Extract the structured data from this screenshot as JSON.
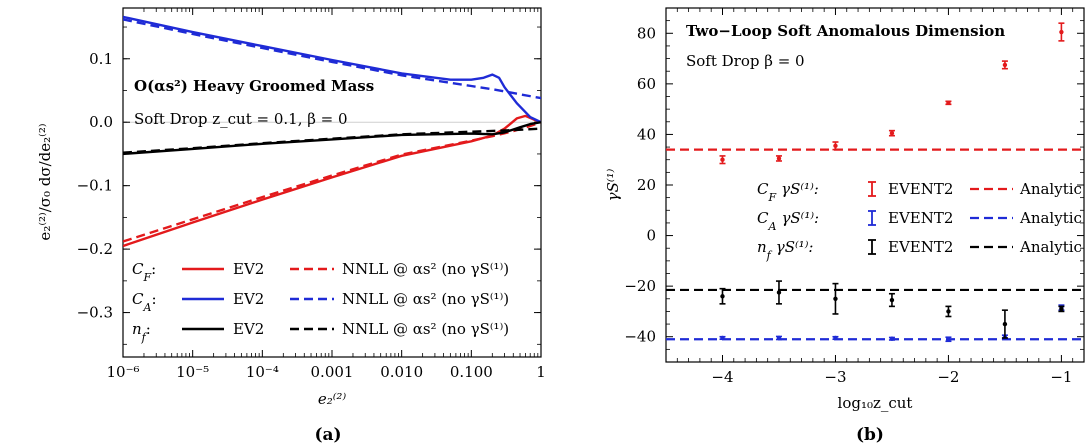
{
  "chart_data": [
    {
      "type": "line",
      "panel": "(a)",
      "title": "O(αs²) Heavy Groomed Mass",
      "subtitle": "Soft Drop z_cut = 0.1, β = 0",
      "xlabel": "e₂⁽²⁾",
      "ylabel": "e₂⁽²⁾/σ₀ dσ/de₂⁽²⁾",
      "x_scale": "log",
      "xlim": [
        1e-06,
        1
      ],
      "ylim": [
        -0.37,
        0.18
      ],
      "xticks": [
        {
          "value": 1e-06,
          "label": "10⁻⁶"
        },
        {
          "value": 1e-05,
          "label": "10⁻⁵"
        },
        {
          "value": 0.0001,
          "label": "10⁻⁴"
        },
        {
          "value": 0.001,
          "label": "0.001"
        },
        {
          "value": 0.01,
          "label": "0.010"
        },
        {
          "value": 0.1,
          "label": "0.100"
        },
        {
          "value": 1,
          "label": "1"
        }
      ],
      "yticks": [
        {
          "value": 0.1,
          "label": "0.1"
        },
        {
          "value": 0.0,
          "label": "0.0"
        },
        {
          "value": -0.1,
          "label": "−0.1"
        },
        {
          "value": -0.2,
          "label": "−0.2"
        },
        {
          "value": -0.3,
          "label": "−0.3"
        }
      ],
      "legend_placement": "bottom-left",
      "series": [
        {
          "group": "C_F",
          "kind": "EV2",
          "color": "#e31a1c",
          "dash": false,
          "x": [
            1e-06,
            1e-05,
            0.0001,
            0.001,
            0.01,
            0.1,
            0.2,
            0.3,
            0.45,
            0.6,
            0.8,
            1
          ],
          "y": [
            -0.195,
            -0.158,
            -0.122,
            -0.087,
            -0.053,
            -0.03,
            -0.021,
            -0.01,
            0.006,
            0.01,
            0.004,
            0.0
          ]
        },
        {
          "group": "C_F",
          "kind": "NNLL",
          "color": "#e31a1c",
          "dash": true,
          "x": [
            1e-06,
            1e-05,
            0.0001,
            0.001,
            0.01,
            0.1,
            0.2,
            0.4,
            0.7,
            1
          ],
          "y": [
            -0.188,
            -0.153,
            -0.118,
            -0.084,
            -0.051,
            -0.029,
            -0.022,
            -0.014,
            -0.006,
            0.0
          ]
        },
        {
          "group": "C_A",
          "kind": "EV2",
          "color": "#1f2bd6",
          "dash": false,
          "x": [
            1e-06,
            1e-05,
            0.0001,
            0.001,
            0.01,
            0.05,
            0.1,
            0.15,
            0.2,
            0.25,
            0.3,
            0.45,
            0.7,
            1
          ],
          "y": [
            0.166,
            0.142,
            0.12,
            0.098,
            0.077,
            0.067,
            0.067,
            0.07,
            0.075,
            0.07,
            0.055,
            0.03,
            0.008,
            0.0
          ]
        },
        {
          "group": "C_A",
          "kind": "NNLL",
          "color": "#1f2bd6",
          "dash": true,
          "x": [
            1e-06,
            1e-05,
            0.0001,
            0.001,
            0.01,
            0.1,
            0.2,
            0.5,
            1
          ],
          "y": [
            0.162,
            0.139,
            0.117,
            0.095,
            0.074,
            0.057,
            0.052,
            0.044,
            0.038
          ]
        },
        {
          "group": "n_f",
          "kind": "EV2",
          "color": "#000000",
          "dash": false,
          "x": [
            1e-06,
            1e-05,
            0.0001,
            0.001,
            0.01,
            0.1,
            0.2,
            0.3,
            0.5,
            0.7,
            1
          ],
          "y": [
            -0.05,
            -0.042,
            -0.034,
            -0.027,
            -0.02,
            -0.018,
            -0.019,
            -0.016,
            -0.008,
            -0.003,
            0.0
          ]
        },
        {
          "group": "n_f",
          "kind": "NNLL",
          "color": "#000000",
          "dash": true,
          "x": [
            1e-06,
            1e-05,
            0.0001,
            0.001,
            0.01,
            0.1,
            0.3,
            1
          ],
          "y": [
            -0.048,
            -0.041,
            -0.033,
            -0.026,
            -0.019,
            -0.015,
            -0.013,
            -0.01
          ]
        }
      ],
      "legend": {
        "rows": [
          {
            "group": "C_F",
            "color": "#e31a1c"
          },
          {
            "group": "C_A",
            "color": "#1f2bd6"
          },
          {
            "group": "n_f",
            "color": "#000000"
          }
        ],
        "ev2_label": "EV2",
        "nnll_label": "NNLL @ αs² (no γS⁽¹⁾)"
      }
    },
    {
      "type": "scatter",
      "panel": "(b)",
      "title": "Two−Loop Soft Anomalous Dimension",
      "subtitle": "Soft Drop β = 0",
      "xlabel": "log₁₀z_cut",
      "ylabel": "γS⁽¹⁾",
      "xlim": [
        -4.5,
        -0.8
      ],
      "ylim": [
        -50,
        90
      ],
      "xticks": [
        {
          "value": -4,
          "label": "−4"
        },
        {
          "value": -3,
          "label": "−3"
        },
        {
          "value": -2,
          "label": "−2"
        },
        {
          "value": -1,
          "label": "−1"
        }
      ],
      "yticks": [
        {
          "value": 80,
          "label": "80"
        },
        {
          "value": 60,
          "label": "60"
        },
        {
          "value": 40,
          "label": "40"
        },
        {
          "value": 20,
          "label": "20"
        },
        {
          "value": 0,
          "label": "0"
        },
        {
          "value": -20,
          "label": "−20"
        },
        {
          "value": -40,
          "label": "−40"
        }
      ],
      "legend_placement": "center-right",
      "series": [
        {
          "group": "C_F",
          "name": "EVENT2",
          "color": "#e31a1c",
          "x": [
            -4,
            -3.5,
            -3,
            -2.5,
            -2,
            -1.5,
            -1
          ],
          "y": [
            30,
            30.5,
            35.5,
            40.5,
            52.5,
            67.5,
            80.5
          ],
          "err": [
            1.5,
            1,
            1.5,
            1,
            0.6,
            1.5,
            3.5
          ]
        },
        {
          "group": "C_A",
          "name": "EVENT2",
          "color": "#1f2bd6",
          "x": [
            -4,
            -3.5,
            -3,
            -2.5,
            -2,
            -1.5,
            -1
          ],
          "y": [
            -40.5,
            -40.5,
            -40.5,
            -40.8,
            -41,
            -40.2,
            -28.5
          ],
          "err": [
            0.5,
            0.6,
            0.5,
            0.5,
            0.8,
            0.8,
            1
          ]
        },
        {
          "group": "n_f",
          "name": "EVENT2",
          "color": "#000000",
          "x": [
            -4,
            -3.5,
            -3,
            -2.5,
            -2,
            -1.5,
            -1
          ],
          "y": [
            -24,
            -22.5,
            -25,
            -25.5,
            -30,
            -35,
            -29
          ],
          "err": [
            3,
            4.5,
            6,
            2.5,
            2,
            5.5,
            1
          ]
        }
      ],
      "analytic": [
        {
          "group": "C_F",
          "y": 34.0,
          "color": "#e31a1c"
        },
        {
          "group": "C_A",
          "y": -41.0,
          "color": "#1f2bd6"
        },
        {
          "group": "n_f",
          "y": -21.5,
          "color": "#000000"
        }
      ],
      "legend": {
        "event_label": "EVENT2",
        "analytic_label": "Analytic",
        "rows": [
          {
            "group": "C_F",
            "color": "#e31a1c"
          },
          {
            "group": "C_A",
            "color": "#1f2bd6"
          },
          {
            "group": "n_f",
            "color": "#000000"
          }
        ]
      }
    }
  ],
  "captions": [
    "(a)",
    "(b)"
  ]
}
